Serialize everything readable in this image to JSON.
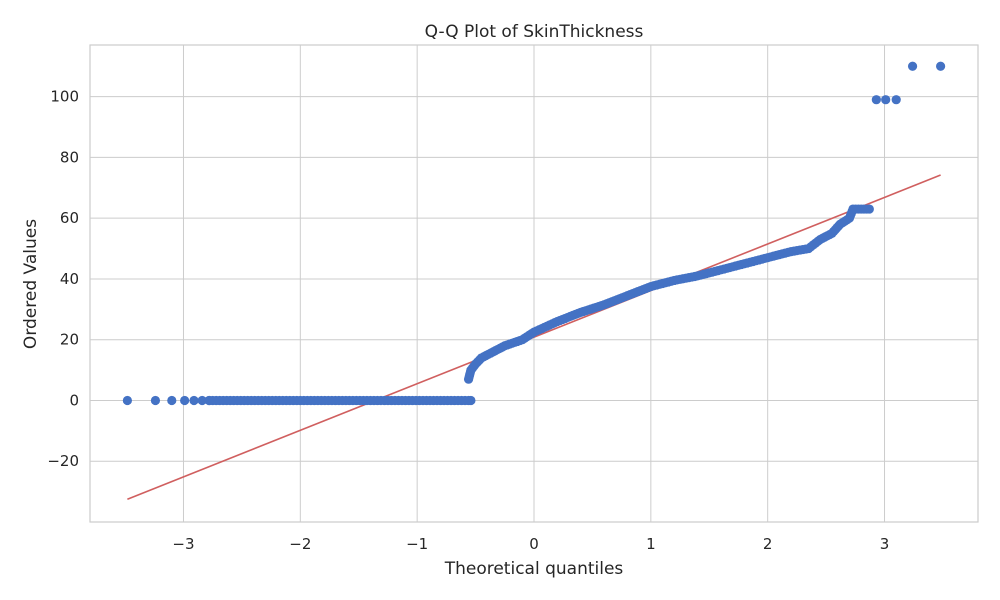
{
  "chart_data": {
    "type": "scatter",
    "title": "Q-Q Plot of SkinThickness",
    "xlabel": "Theoretical quantiles",
    "ylabel": "Ordered Values",
    "xlim": [
      -3.8,
      3.8
    ],
    "ylim": [
      -40,
      117
    ],
    "x_ticks": [
      -3,
      -2,
      -1,
      0,
      1,
      2,
      3
    ],
    "x_tick_labels": [
      "−3",
      "−2",
      "−1",
      "0",
      "1",
      "2",
      "3"
    ],
    "y_ticks": [
      -20,
      0,
      20,
      40,
      60,
      80,
      100
    ],
    "y_tick_labels": [
      "−20",
      "0",
      "20",
      "40",
      "60",
      "80",
      "100"
    ],
    "grid": true,
    "colors": {
      "points": "#4472c4",
      "fit_line": "#d05f5f",
      "grid": "#cccccc",
      "frame": "#cccccc"
    },
    "fit_line": {
      "x": [
        -3.48,
        3.48
      ],
      "y": [
        -32.5,
        74.2
      ]
    },
    "point_groups": [
      {
        "name": "zeros",
        "y": 0,
        "x_min": -3.48,
        "x_max": -0.54,
        "isolated_x": [
          -3.48,
          -3.24,
          -3.1,
          -2.99,
          -2.91,
          -2.84,
          -2.78
        ]
      },
      {
        "name": "main",
        "segments": [
          [
            -0.56,
            7
          ],
          [
            -0.54,
            10
          ],
          [
            -0.5,
            12
          ],
          [
            -0.45,
            14
          ],
          [
            -0.35,
            16
          ],
          [
            -0.25,
            18
          ],
          [
            -0.1,
            20
          ],
          [
            0.0,
            22.5
          ],
          [
            0.2,
            26
          ],
          [
            0.4,
            29
          ],
          [
            0.6,
            31.5
          ],
          [
            0.8,
            34.5
          ],
          [
            1.0,
            37.5
          ],
          [
            1.2,
            39.5
          ],
          [
            1.4,
            41
          ],
          [
            1.6,
            43
          ],
          [
            1.8,
            45
          ],
          [
            2.0,
            47
          ],
          [
            2.2,
            49
          ],
          [
            2.35,
            50
          ],
          [
            2.45,
            53
          ],
          [
            2.55,
            55
          ],
          [
            2.62,
            58
          ],
          [
            2.7,
            60
          ],
          [
            2.73,
            63
          ],
          [
            2.87,
            63
          ]
        ]
      },
      {
        "name": "outliers",
        "points": [
          [
            2.93,
            99
          ],
          [
            3.01,
            99
          ],
          [
            3.1,
            99
          ],
          [
            3.24,
            110
          ],
          [
            3.48,
            110
          ]
        ]
      }
    ]
  }
}
